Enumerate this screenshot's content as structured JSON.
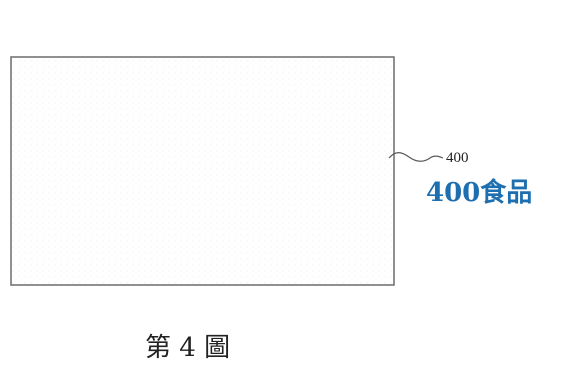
{
  "figure": {
    "element_reference": "400",
    "annotation": "400食品",
    "caption": "第 4 圖"
  },
  "colors": {
    "annotation": "#1e6fb0",
    "line": "#6b6b6b",
    "fill_texture": "#e4e4e4"
  }
}
